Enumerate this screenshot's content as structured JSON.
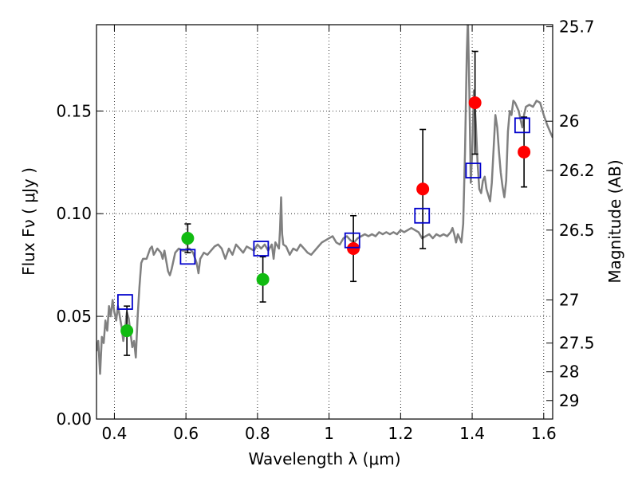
{
  "chart_data": {
    "type": "scatter",
    "xlabel": "Wavelength  λ (μm)",
    "ylabel": "Flux  Fν  ( μJy )",
    "y2label": "Magnitude (AB)",
    "xlim": [
      0.35,
      1.625
    ],
    "ylim": [
      0.0,
      0.192
    ],
    "x_ticks": [
      0.4,
      0.6,
      0.8,
      1.0,
      1.2,
      1.4,
      1.6
    ],
    "x_tick_labels": [
      "0.4",
      "0.6",
      "0.8",
      "1",
      "1.2",
      "1.4",
      "1.6"
    ],
    "y_ticks": [
      0.0,
      0.05,
      0.1,
      0.15
    ],
    "y_tick_labels": [
      "0.00",
      "0.05",
      "0.10",
      "0.15"
    ],
    "y2_ticks": [
      {
        "label": "25.7",
        "flux": 0.191
      },
      {
        "label": "26",
        "flux": 0.145
      },
      {
        "label": "26.2",
        "flux": 0.121
      },
      {
        "label": "26.5",
        "flux": 0.092
      },
      {
        "label": "27",
        "flux": 0.058
      },
      {
        "label": "27.5",
        "flux": 0.037
      },
      {
        "label": "28",
        "flux": 0.023
      },
      {
        "label": "29",
        "flux": 0.009
      }
    ],
    "grid": true,
    "colors": {
      "spectrum": "#808080",
      "green": "#11bb11",
      "red": "#ff0000",
      "blue": "#0000cc",
      "errorbar": "#000000"
    },
    "series": [
      {
        "kind": "line",
        "points": [
          [
            0.35,
            0.033
          ],
          [
            0.355,
            0.038
          ],
          [
            0.36,
            0.022
          ],
          [
            0.365,
            0.04
          ],
          [
            0.37,
            0.037
          ],
          [
            0.375,
            0.048
          ],
          [
            0.38,
            0.043
          ],
          [
            0.385,
            0.055
          ],
          [
            0.39,
            0.05
          ],
          [
            0.395,
            0.058
          ],
          [
            0.4,
            0.052
          ],
          [
            0.405,
            0.048
          ],
          [
            0.41,
            0.055
          ],
          [
            0.415,
            0.05
          ],
          [
            0.42,
            0.045
          ],
          [
            0.425,
            0.038
          ],
          [
            0.43,
            0.044
          ],
          [
            0.435,
            0.052
          ],
          [
            0.44,
            0.049
          ],
          [
            0.445,
            0.042
          ],
          [
            0.45,
            0.035
          ],
          [
            0.455,
            0.038
          ],
          [
            0.46,
            0.03
          ],
          [
            0.465,
            0.05
          ],
          [
            0.47,
            0.064
          ],
          [
            0.475,
            0.076
          ],
          [
            0.48,
            0.078
          ],
          [
            0.49,
            0.078
          ],
          [
            0.5,
            0.083
          ],
          [
            0.505,
            0.084
          ],
          [
            0.51,
            0.08
          ],
          [
            0.52,
            0.083
          ],
          [
            0.53,
            0.081
          ],
          [
            0.535,
            0.078
          ],
          [
            0.54,
            0.082
          ],
          [
            0.55,
            0.072
          ],
          [
            0.555,
            0.07
          ],
          [
            0.56,
            0.073
          ],
          [
            0.57,
            0.081
          ],
          [
            0.58,
            0.083
          ],
          [
            0.59,
            0.082
          ],
          [
            0.6,
            0.082
          ],
          [
            0.61,
            0.083
          ],
          [
            0.62,
            0.081
          ],
          [
            0.63,
            0.076
          ],
          [
            0.635,
            0.071
          ],
          [
            0.64,
            0.078
          ],
          [
            0.65,
            0.081
          ],
          [
            0.66,
            0.08
          ],
          [
            0.67,
            0.082
          ],
          [
            0.68,
            0.084
          ],
          [
            0.69,
            0.085
          ],
          [
            0.7,
            0.083
          ],
          [
            0.71,
            0.078
          ],
          [
            0.72,
            0.083
          ],
          [
            0.73,
            0.08
          ],
          [
            0.74,
            0.085
          ],
          [
            0.75,
            0.083
          ],
          [
            0.76,
            0.081
          ],
          [
            0.77,
            0.084
          ],
          [
            0.78,
            0.083
          ],
          [
            0.79,
            0.082
          ],
          [
            0.8,
            0.085
          ],
          [
            0.81,
            0.083
          ],
          [
            0.82,
            0.085
          ],
          [
            0.83,
            0.082
          ],
          [
            0.84,
            0.085
          ],
          [
            0.845,
            0.078
          ],
          [
            0.85,
            0.086
          ],
          [
            0.86,
            0.083
          ],
          [
            0.863,
            0.092
          ],
          [
            0.866,
            0.108
          ],
          [
            0.869,
            0.09
          ],
          [
            0.872,
            0.085
          ],
          [
            0.88,
            0.084
          ],
          [
            0.89,
            0.08
          ],
          [
            0.9,
            0.083
          ],
          [
            0.91,
            0.082
          ],
          [
            0.92,
            0.085
          ],
          [
            0.93,
            0.083
          ],
          [
            0.94,
            0.081
          ],
          [
            0.95,
            0.08
          ],
          [
            0.96,
            0.082
          ],
          [
            0.97,
            0.084
          ],
          [
            0.98,
            0.086
          ],
          [
            0.99,
            0.087
          ],
          [
            1.0,
            0.088
          ],
          [
            1.01,
            0.089
          ],
          [
            1.02,
            0.086
          ],
          [
            1.03,
            0.085
          ],
          [
            1.04,
            0.088
          ],
          [
            1.05,
            0.089
          ],
          [
            1.06,
            0.087
          ],
          [
            1.07,
            0.086
          ],
          [
            1.08,
            0.088
          ],
          [
            1.09,
            0.089
          ],
          [
            1.1,
            0.09
          ],
          [
            1.11,
            0.089
          ],
          [
            1.12,
            0.09
          ],
          [
            1.13,
            0.089
          ],
          [
            1.14,
            0.091
          ],
          [
            1.15,
            0.09
          ],
          [
            1.16,
            0.091
          ],
          [
            1.17,
            0.09
          ],
          [
            1.18,
            0.091
          ],
          [
            1.19,
            0.09
          ],
          [
            1.2,
            0.092
          ],
          [
            1.21,
            0.091
          ],
          [
            1.22,
            0.092
          ],
          [
            1.23,
            0.093
          ],
          [
            1.24,
            0.092
          ],
          [
            1.25,
            0.091
          ],
          [
            1.26,
            0.088
          ],
          [
            1.27,
            0.089
          ],
          [
            1.28,
            0.09
          ],
          [
            1.29,
            0.088
          ],
          [
            1.3,
            0.09
          ],
          [
            1.31,
            0.089
          ],
          [
            1.32,
            0.09
          ],
          [
            1.33,
            0.089
          ],
          [
            1.34,
            0.091
          ],
          [
            1.345,
            0.093
          ],
          [
            1.35,
            0.09
          ],
          [
            1.355,
            0.086
          ],
          [
            1.36,
            0.09
          ],
          [
            1.365,
            0.088
          ],
          [
            1.37,
            0.086
          ],
          [
            1.375,
            0.095
          ],
          [
            1.38,
            0.13
          ],
          [
            1.385,
            0.178
          ],
          [
            1.388,
            0.195
          ],
          [
            1.392,
            0.16
          ],
          [
            1.396,
            0.115
          ],
          [
            1.4,
            0.13
          ],
          [
            1.405,
            0.16
          ],
          [
            1.41,
            0.145
          ],
          [
            1.415,
            0.125
          ],
          [
            1.42,
            0.112
          ],
          [
            1.425,
            0.11
          ],
          [
            1.43,
            0.116
          ],
          [
            1.435,
            0.118
          ],
          [
            1.44,
            0.112
          ],
          [
            1.45,
            0.106
          ],
          [
            1.455,
            0.115
          ],
          [
            1.46,
            0.132
          ],
          [
            1.465,
            0.148
          ],
          [
            1.47,
            0.142
          ],
          [
            1.475,
            0.13
          ],
          [
            1.48,
            0.12
          ],
          [
            1.485,
            0.113
          ],
          [
            1.49,
            0.108
          ],
          [
            1.495,
            0.116
          ],
          [
            1.5,
            0.14
          ],
          [
            1.505,
            0.15
          ],
          [
            1.51,
            0.148
          ],
          [
            1.515,
            0.155
          ],
          [
            1.52,
            0.154
          ],
          [
            1.53,
            0.15
          ],
          [
            1.54,
            0.142
          ],
          [
            1.545,
            0.148
          ],
          [
            1.55,
            0.152
          ],
          [
            1.56,
            0.153
          ],
          [
            1.57,
            0.152
          ],
          [
            1.58,
            0.155
          ],
          [
            1.59,
            0.154
          ],
          [
            1.6,
            0.148
          ],
          [
            1.61,
            0.143
          ],
          [
            1.625,
            0.137
          ]
        ]
      },
      {
        "kind": "points",
        "color": "#11bb11",
        "marker": "circle",
        "points": [
          {
            "x": 0.435,
            "y": 0.043,
            "err": 0.012
          },
          {
            "x": 0.605,
            "y": 0.088,
            "err": 0.007
          },
          {
            "x": 0.815,
            "y": 0.068,
            "err": 0.011
          }
        ]
      },
      {
        "kind": "points",
        "color": "#ff0000",
        "marker": "circle",
        "points": [
          {
            "x": 1.068,
            "y": 0.083,
            "err": 0.016
          },
          {
            "x": 1.262,
            "y": 0.112,
            "err": 0.029
          },
          {
            "x": 1.408,
            "y": 0.154,
            "err": 0.025
          },
          {
            "x": 1.545,
            "y": 0.13,
            "err": 0.017
          }
        ]
      },
      {
        "kind": "points",
        "color": "#0000cc",
        "marker": "square",
        "points": [
          {
            "x": 0.43,
            "y": 0.057
          },
          {
            "x": 0.605,
            "y": 0.079
          },
          {
            "x": 0.81,
            "y": 0.083
          },
          {
            "x": 1.065,
            "y": 0.087
          },
          {
            "x": 1.26,
            "y": 0.099
          },
          {
            "x": 1.403,
            "y": 0.121
          },
          {
            "x": 1.54,
            "y": 0.143
          }
        ]
      }
    ]
  }
}
